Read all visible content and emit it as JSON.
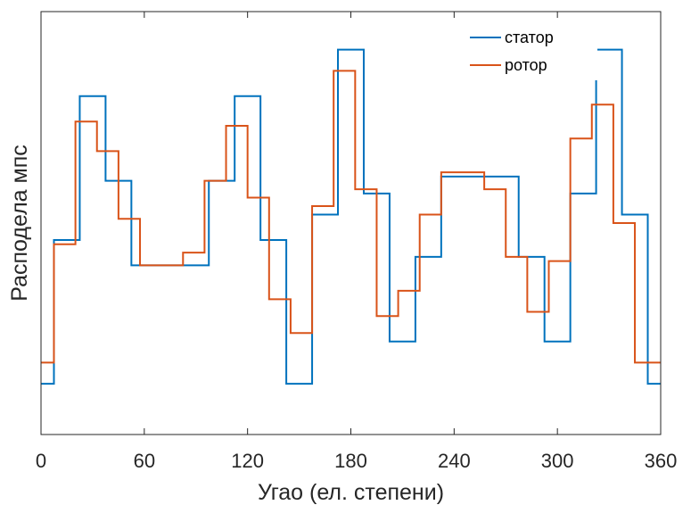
{
  "chart_data": {
    "type": "line",
    "title": "",
    "xlabel": "Угао (ел. степени)",
    "ylabel": "Расподела мпс",
    "xlim": [
      0,
      360
    ],
    "ylim": [
      0,
      1
    ],
    "x_ticks": [
      0,
      60,
      120,
      180,
      240,
      300,
      360
    ],
    "x_tick_labels": [
      "0",
      "60",
      "120",
      "180",
      "240",
      "300",
      "360"
    ],
    "y_tick_labels_shown": false,
    "grid": false,
    "legend_position": "top-right",
    "step_plot": true,
    "series": [
      {
        "name": "статор",
        "color": "#0072BD",
        "x": [
          0,
          7.5,
          22.5,
          37.5,
          52.5,
          67.5,
          82.5,
          97.5,
          112.5,
          127.5,
          142.5,
          157.5,
          172.5,
          187.5,
          202.5,
          217.5,
          232.5,
          247.5,
          262.5,
          277.5,
          292.5,
          307.5,
          322.5,
          337.5,
          352.5,
          360
        ],
        "y": [
          0.12,
          0.46,
          0.8,
          0.6,
          0.4,
          0.4,
          0.4,
          0.6,
          0.8,
          0.46,
          0.12,
          0.52,
          0.91,
          0.57,
          0.22,
          0.42,
          0.61,
          0.61,
          0.61,
          0.42,
          0.22,
          0.57,
          0.91,
          0.52,
          0.12,
          0.12
        ]
      },
      {
        "name": "ротор",
        "color": "#D95319",
        "x": [
          0,
          7.5,
          20,
          32.5,
          45,
          57.5,
          70,
          82.5,
          95,
          107.5,
          120,
          132.5,
          145,
          157.5,
          170,
          182.5,
          195,
          207.5,
          220,
          232.5,
          245,
          257.5,
          270,
          282.5,
          295,
          307.5,
          320,
          332.5,
          345,
          360
        ],
        "y": [
          0.17,
          0.45,
          0.74,
          0.67,
          0.51,
          0.4,
          0.4,
          0.43,
          0.6,
          0.73,
          0.56,
          0.32,
          0.24,
          0.54,
          0.86,
          0.58,
          0.28,
          0.34,
          0.52,
          0.62,
          0.62,
          0.58,
          0.42,
          0.29,
          0.41,
          0.7,
          0.78,
          0.5,
          0.17,
          0.17
        ]
      }
    ]
  }
}
